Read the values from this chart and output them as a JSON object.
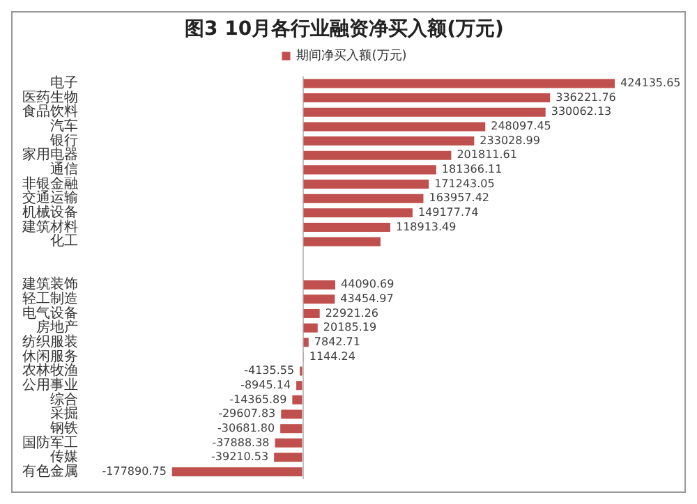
{
  "chart_data": {
    "type": "bar",
    "orientation": "horizontal",
    "title": "图3 10月各行业融资净买入额(万元)",
    "legend": "top",
    "grid": false,
    "categories": [
      "电子",
      "医药生物",
      "食品饮料",
      "汽车",
      "银行",
      "家用电器",
      "通信",
      "非银金融",
      "交通运输",
      "机械设备",
      "建筑材料",
      "化工",
      null,
      null,
      "建筑装饰",
      "轻工制造",
      "电气设备",
      "房地产",
      "纺织服装",
      "休闲服务",
      "农林牧渔",
      "公用事业",
      "综合",
      "采掘",
      "钢铁",
      "国防军工",
      "传媒",
      "有色金属"
    ],
    "series": [
      {
        "name": "期间净买入额(万元)",
        "color": "#c0504d",
        "values": [
          424135.65,
          336221.76,
          330062.13,
          248097.45,
          233028.99,
          201811.61,
          181366.11,
          171243.05,
          163957.42,
          149177.74,
          118913.49,
          105614.34,
          null,
          null,
          44090.69,
          43454.97,
          22921.26,
          20185.19,
          7842.71,
          1144.24,
          -4135.55,
          -8945.14,
          -14365.89,
          -29607.83,
          -30681.8,
          -37888.38,
          -39210.53,
          -177890.75
        ],
        "value_labels": [
          "424135.65",
          "336221.76",
          "330062.13",
          "248097.45",
          "233028.99",
          "201811.61",
          "181366.11",
          "171243.05",
          "163957.42",
          "149177.74",
          "118913.49",
          null,
          null,
          null,
          "44090.69",
          "43454.97",
          "22921.26",
          "20185.19",
          "7842.71",
          "1144.24",
          "-4135.55",
          "-8945.14",
          "-14365.89",
          "-29607.83",
          "-30681.80",
          "-37888.38",
          "-39210.53",
          "-177890.75"
        ]
      }
    ]
  }
}
